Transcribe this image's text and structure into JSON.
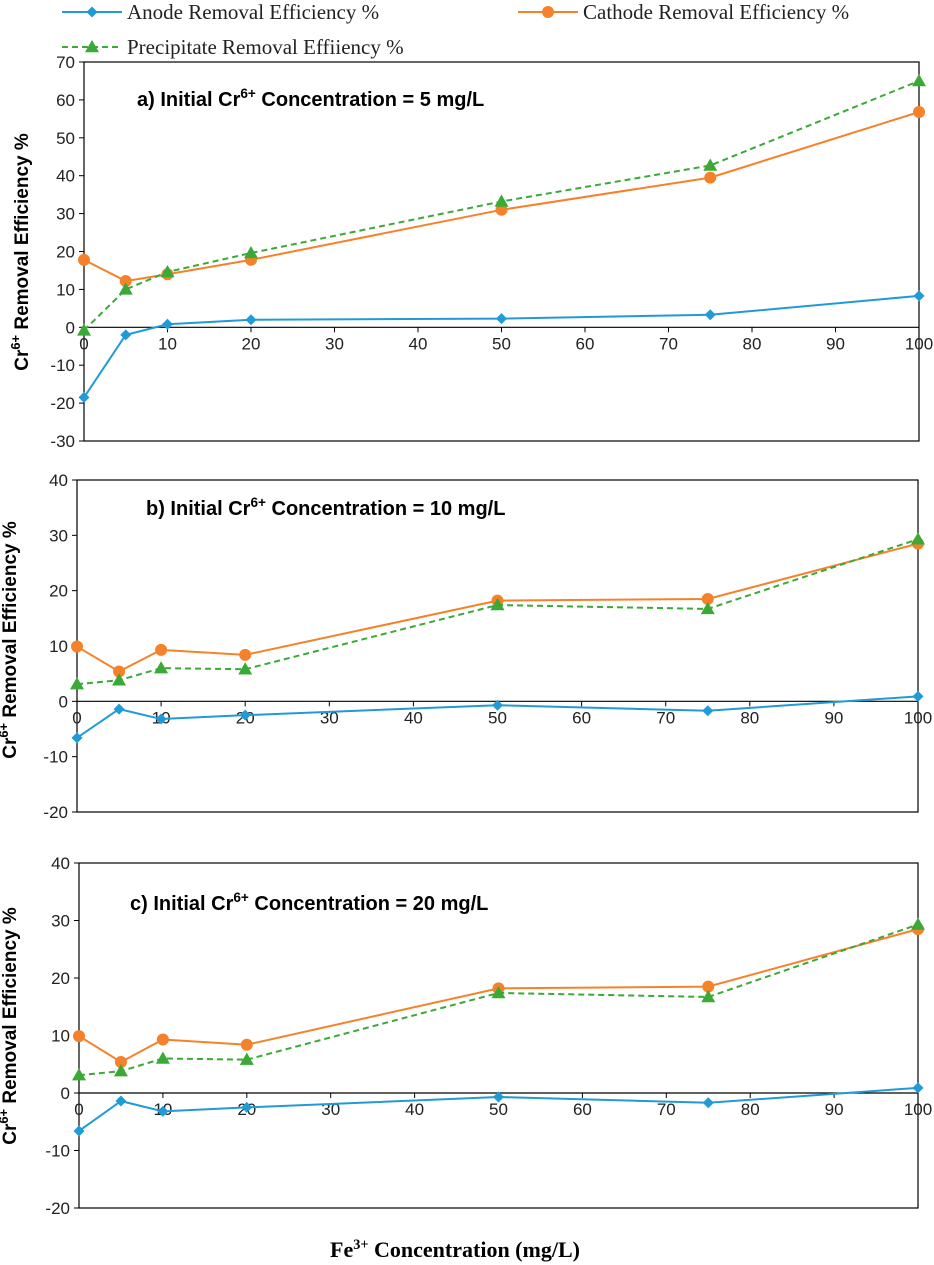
{
  "chart_data": {
    "type": "line",
    "xlabel_main": "Fe",
    "xlabel_sup": "3+",
    "xlabel_rest": " Concentration (mg/L)",
    "ylabel_main": "Cr",
    "ylabel_sup": "6+",
    "ylabel_rest": " Removal Efficiency %",
    "legend": [
      {
        "name": "Anode Removal Efficiency %",
        "color": "#1f9bd7",
        "marker": "diamond",
        "dash": "solid"
      },
      {
        "name": "Cathode Removal Efficiency %",
        "color": "#f5822a",
        "marker": "circle",
        "dash": "solid"
      },
      {
        "name": "Precipitate Removal Effiiency %",
        "color": "#3aa935",
        "marker": "triangle",
        "dash": "dashed"
      }
    ],
    "x": [
      0,
      5,
      10,
      20,
      50,
      75,
      100
    ],
    "x_ticks": [
      0,
      10,
      20,
      30,
      40,
      50,
      60,
      70,
      80,
      90,
      100
    ],
    "xlim": [
      0,
      100
    ],
    "panels": [
      {
        "title_main": "a) Initial Cr",
        "title_sup": "6+",
        "title_rest": " Concentration = 5 mg/L",
        "ylim": [
          -30,
          70
        ],
        "y_ticks": [
          -30,
          -20,
          -10,
          0,
          10,
          20,
          30,
          40,
          50,
          60,
          70
        ],
        "series": [
          {
            "name": "Anode Removal Efficiency %",
            "values": [
              -18.5,
              -2,
              0.8,
              2,
              2.3,
              3.3,
              8.3
            ]
          },
          {
            "name": "Cathode Removal Efficiency %",
            "values": [
              17.8,
              12.2,
              14,
              17.8,
              31,
              39.5,
              56.8
            ]
          },
          {
            "name": "Precipitate Removal Effiiency %",
            "values": [
              -0.8,
              10,
              14.6,
              19.6,
              33.2,
              42.7,
              65
            ]
          }
        ]
      },
      {
        "title_main": "b) Initial Cr",
        "title_sup": "6+",
        "title_rest": " Concentration = 10 mg/L",
        "ylim": [
          -20,
          40
        ],
        "y_ticks": [
          -20,
          -10,
          0,
          10,
          20,
          30,
          40
        ],
        "series": [
          {
            "name": "Anode Removal Efficiency %",
            "values": [
              -6.6,
              -1.4,
              -3.2,
              -2.5,
              -0.7,
              -1.7,
              0.9
            ]
          },
          {
            "name": "Cathode Removal Efficiency %",
            "values": [
              9.9,
              5.4,
              9.3,
              8.4,
              18.2,
              18.5,
              28.5
            ]
          },
          {
            "name": "Precipitate Removal Effiiency %",
            "values": [
              3.1,
              3.8,
              6,
              5.8,
              17.4,
              16.7,
              29.3
            ]
          }
        ]
      },
      {
        "title_main": "c) Initial Cr",
        "title_sup": "6+",
        "title_rest": " Concentration = 20  mg/L",
        "ylim": [
          -20,
          40
        ],
        "y_ticks": [
          -20,
          -10,
          0,
          10,
          20,
          30,
          40
        ],
        "series": [
          {
            "name": "Anode Removal Efficiency %",
            "values": [
              -6.6,
              -1.4,
              -3.2,
              -2.5,
              -0.7,
              -1.7,
              0.9
            ]
          },
          {
            "name": "Cathode Removal Efficiency %",
            "values": [
              9.9,
              5.4,
              9.3,
              8.4,
              18.2,
              18.5,
              28.5
            ]
          },
          {
            "name": "Precipitate Removal Effiiency %",
            "values": [
              3.1,
              3.8,
              6,
              5.8,
              17.4,
              16.7,
              29.3
            ]
          }
        ]
      }
    ]
  }
}
